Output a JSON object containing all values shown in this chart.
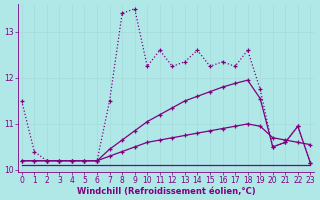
{
  "x": [
    0,
    1,
    2,
    3,
    4,
    5,
    6,
    7,
    8,
    9,
    10,
    11,
    12,
    13,
    14,
    15,
    16,
    17,
    18,
    19,
    20,
    21,
    22,
    23
  ],
  "line1": [
    11.5,
    10.4,
    10.2,
    10.2,
    10.2,
    10.2,
    10.2,
    11.5,
    13.4,
    13.5,
    12.25,
    12.6,
    12.25,
    12.35,
    12.6,
    12.25,
    12.35,
    12.25,
    12.6,
    11.75,
    10.5,
    10.6,
    10.95,
    10.15
  ],
  "line2": [
    10.2,
    10.2,
    10.2,
    10.2,
    10.2,
    10.2,
    10.2,
    10.45,
    10.65,
    10.85,
    11.05,
    11.2,
    11.35,
    11.5,
    11.6,
    11.7,
    11.8,
    11.88,
    11.95,
    11.55,
    10.5,
    10.6,
    10.95,
    10.15
  ],
  "line3": [
    10.2,
    10.2,
    10.2,
    10.2,
    10.2,
    10.2,
    10.2,
    10.3,
    10.4,
    10.5,
    10.6,
    10.65,
    10.7,
    10.75,
    10.8,
    10.85,
    10.9,
    10.95,
    11.0,
    10.95,
    10.7,
    10.65,
    10.6,
    10.55
  ],
  "line4": [
    10.1,
    10.1,
    10.1,
    10.1,
    10.1,
    10.1,
    10.1,
    10.1,
    10.1,
    10.1,
    10.1,
    10.1,
    10.1,
    10.1,
    10.1,
    10.1,
    10.1,
    10.1,
    10.1,
    10.1,
    10.1,
    10.1,
    10.1,
    10.1
  ],
  "color": "#800080",
  "bg_color": "#b0e8e8",
  "grid_color": "#aadddd",
  "ylim": [
    9.95,
    13.6
  ],
  "yticks": [
    10,
    11,
    12,
    13
  ],
  "xticks": [
    0,
    1,
    2,
    3,
    4,
    5,
    6,
    7,
    8,
    9,
    10,
    11,
    12,
    13,
    14,
    15,
    16,
    17,
    18,
    19,
    20,
    21,
    22,
    23
  ],
  "xlabel": "Windchill (Refroidissement éolien,°C)",
  "tick_fontsize": 5.5,
  "label_fontsize": 6.0
}
